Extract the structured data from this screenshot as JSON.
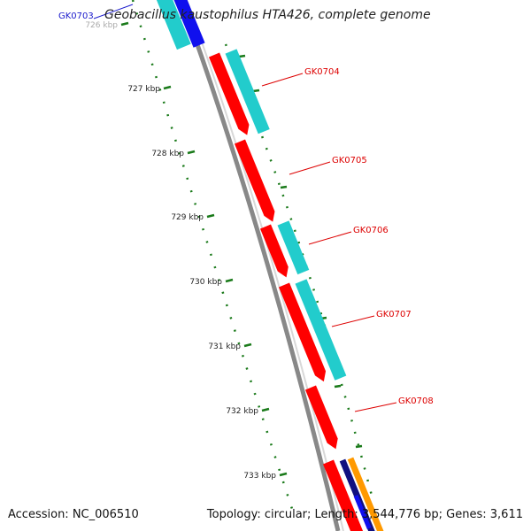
{
  "title": "Geobacillus kaustophilus HTA426, complete genome",
  "footer": {
    "accession": "Accession: NC_006510",
    "summary": "Topology: circular; Length: 3,544,776 bp; Genes: 3,611"
  },
  "ticks": [
    {
      "label": "726 kbp"
    },
    {
      "label": "727 kbp"
    },
    {
      "label": "728 kbp"
    },
    {
      "label": "729 kbp"
    },
    {
      "label": "730 kbp"
    },
    {
      "label": "731 kbp"
    },
    {
      "label": "732 kbp"
    },
    {
      "label": "733 kbp"
    }
  ],
  "gene_labels": [
    {
      "name": "GK0703",
      "color": "#1a1acc"
    },
    {
      "name": "GK0704",
      "color": "#dd0000"
    },
    {
      "name": "GK0705",
      "color": "#dd0000"
    },
    {
      "name": "GK0706",
      "color": "#dd0000"
    },
    {
      "name": "GK0707",
      "color": "#dd0000"
    },
    {
      "name": "GK0708",
      "color": "#dd0000"
    }
  ],
  "colors": {
    "cds": "#ff0000",
    "gc_track": "#22cccc",
    "blue_feature": "#1010ee",
    "backbone": "#888888",
    "tick": "#1a7a1a",
    "navy": "#101080",
    "orange": "#ff9900"
  }
}
